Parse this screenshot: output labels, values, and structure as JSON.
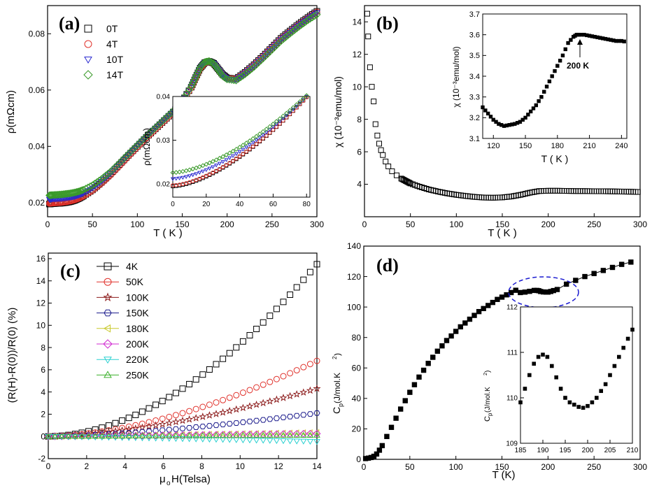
{
  "panels": [
    {
      "id": "a",
      "label": "(a)",
      "chart_data": {
        "type": "scatter",
        "title": "",
        "xlabel": "T ( K )",
        "ylabel": "ρ(mΩcm)",
        "xlim": [
          0,
          300
        ],
        "ylim": [
          0.015,
          0.09
        ],
        "xticks": [
          0,
          50,
          100,
          150,
          200,
          250,
          300
        ],
        "yticks": [
          0.02,
          0.04,
          0.06,
          0.08
        ],
        "legend_position": "top-left",
        "series": [
          {
            "name": "0T",
            "marker": "square",
            "color": "#000000",
            "x": [
              2,
              5,
              10,
              15,
              20,
              25,
              30,
              35,
              40,
              50,
              60,
              70,
              80,
              90,
              100,
              110,
              120,
              130,
              140,
              150,
              160,
              165,
              170,
              175,
              180,
              185,
              190,
              195,
              200,
              210,
              220,
              230,
              240,
              250,
              260,
              270,
              280,
              290,
              300
            ],
            "y": [
              0.0195,
              0.0196,
              0.0197,
              0.0198,
              0.02,
              0.0203,
              0.0208,
              0.0215,
              0.0224,
              0.0245,
              0.0272,
              0.0302,
              0.0335,
              0.0368,
              0.04,
              0.0432,
              0.0462,
              0.0492,
              0.0522,
              0.056,
              0.061,
              0.0645,
              0.0678,
              0.0697,
              0.0702,
              0.0695,
              0.0675,
              0.0655,
              0.0643,
              0.064,
              0.0663,
              0.069,
              0.072,
              0.0752,
              0.0784,
              0.081,
              0.0835,
              0.0858,
              0.088
            ]
          },
          {
            "name": "4T",
            "marker": "circle",
            "color": "#e0302a",
            "x": [
              2,
              5,
              10,
              15,
              20,
              25,
              30,
              35,
              40,
              50,
              60,
              70,
              80,
              90,
              100,
              110,
              120,
              130,
              140,
              150,
              160,
              165,
              170,
              175,
              180,
              185,
              190,
              195,
              200,
              210,
              220,
              230,
              240,
              250,
              260,
              270,
              280,
              290,
              300
            ],
            "y": [
              0.0197,
              0.0198,
              0.0199,
              0.02,
              0.0202,
              0.0205,
              0.0209,
              0.0215,
              0.0223,
              0.0243,
              0.0268,
              0.0297,
              0.033,
              0.0364,
              0.0397,
              0.0429,
              0.046,
              0.049,
              0.052,
              0.0558,
              0.0608,
              0.0642,
              0.0676,
              0.0696,
              0.0701,
              0.0694,
              0.0674,
              0.0654,
              0.0642,
              0.0639,
              0.0662,
              0.0689,
              0.0719,
              0.0751,
              0.0782,
              0.0808,
              0.0833,
              0.0856,
              0.0878
            ]
          },
          {
            "name": "10T",
            "marker": "triangle-down",
            "color": "#2a2ad0",
            "x": [
              2,
              5,
              10,
              15,
              20,
              25,
              30,
              35,
              40,
              50,
              60,
              70,
              80,
              90,
              100,
              110,
              120,
              130,
              140,
              150,
              160,
              165,
              170,
              175,
              180,
              185,
              190,
              195,
              200,
              210,
              220,
              230,
              240,
              250,
              260,
              270,
              280,
              290,
              300
            ],
            "y": [
              0.0212,
              0.0213,
              0.0214,
              0.0215,
              0.0217,
              0.0219,
              0.0222,
              0.0227,
              0.0234,
              0.0252,
              0.0276,
              0.0304,
              0.0336,
              0.0369,
              0.0401,
              0.0433,
              0.0463,
              0.0493,
              0.0523,
              0.056,
              0.0609,
              0.0643,
              0.0677,
              0.0697,
              0.0702,
              0.0694,
              0.0673,
              0.0652,
              0.064,
              0.0637,
              0.066,
              0.0686,
              0.0716,
              0.0748,
              0.0779,
              0.0805,
              0.083,
              0.0853,
              0.0875
            ]
          },
          {
            "name": "14T",
            "marker": "diamond",
            "color": "#3a9a2a",
            "x": [
              2,
              5,
              10,
              15,
              20,
              25,
              30,
              35,
              40,
              50,
              60,
              70,
              80,
              90,
              100,
              110,
              120,
              130,
              140,
              150,
              160,
              165,
              170,
              175,
              180,
              185,
              190,
              195,
              200,
              210,
              220,
              230,
              240,
              250,
              260,
              270,
              280,
              290,
              300
            ],
            "y": [
              0.0226,
              0.0227,
              0.0228,
              0.0229,
              0.0231,
              0.0233,
              0.0236,
              0.024,
              0.0246,
              0.0262,
              0.0284,
              0.031,
              0.0341,
              0.0373,
              0.0405,
              0.0436,
              0.0466,
              0.0496,
              0.0526,
              0.0563,
              0.0612,
              0.0646,
              0.068,
              0.0699,
              0.0703,
              0.0694,
              0.0672,
              0.065,
              0.0638,
              0.0634,
              0.0656,
              0.0682,
              0.0712,
              0.0743,
              0.0774,
              0.08,
              0.0825,
              0.0848,
              0.0868
            ]
          }
        ],
        "inset": {
          "xlabel": "",
          "ylabel": "ρ(mΩcm)",
          "xlim": [
            0,
            82
          ],
          "ylim": [
            0.017,
            0.04
          ],
          "xticks": [
            0,
            20,
            40,
            60,
            80
          ],
          "yticks": [
            0.02,
            0.03,
            0.04
          ],
          "series_y_at_0": [
            0.0195,
            0.0197,
            0.0212,
            0.0226
          ],
          "series_y_at_80": [
            0.0399,
            0.0398,
            0.04,
            0.0402
          ]
        }
      }
    },
    {
      "id": "b",
      "label": "(b)",
      "chart_data": {
        "type": "scatter",
        "xlabel": "T ( K )",
        "ylabel": "χ (10⁻³emu/mol)",
        "xlim": [
          0,
          300
        ],
        "ylim": [
          2,
          15
        ],
        "xticks": [
          0,
          50,
          100,
          150,
          200,
          250,
          300
        ],
        "yticks": [
          4,
          6,
          8,
          10,
          12,
          14
        ],
        "series": [
          {
            "name": "χ",
            "marker": "square-open",
            "color": "#000000",
            "x": [
              3,
              4,
              6,
              8,
              10,
              12,
              14,
              16,
              18,
              20,
              23,
              26,
              30,
              35,
              40,
              45,
              50,
              60,
              70,
              80,
              90,
              100,
              110,
              120,
              130,
              140,
              150,
              160,
              170,
              180,
              190,
              200,
              210,
              220,
              230,
              240,
              250,
              260,
              270,
              280,
              290,
              300
            ],
            "y": [
              14.5,
              13.1,
              11.2,
              10.0,
              9.1,
              7.7,
              7.0,
              6.5,
              6.1,
              5.8,
              5.4,
              5.1,
              4.8,
              4.55,
              4.35,
              4.2,
              4.05,
              3.85,
              3.68,
              3.55,
              3.44,
              3.35,
              3.28,
              3.22,
              3.18,
              3.17,
              3.19,
              3.25,
              3.35,
              3.48,
              3.58,
              3.6,
              3.6,
              3.59,
              3.58,
              3.58,
              3.57,
              3.57,
              3.56,
              3.55,
              3.54,
              3.52
            ]
          }
        ],
        "inset": {
          "xlabel": "T ( K )",
          "ylabel": "χ (10⁻³emu/mol)",
          "xlim": [
            110,
            245
          ],
          "ylim": [
            3.1,
            3.7
          ],
          "xticks": [
            120,
            150,
            180,
            210,
            240
          ],
          "yticks": [
            3.1,
            3.2,
            3.3,
            3.4,
            3.5,
            3.6,
            3.7
          ],
          "annotation": "200 K",
          "annotation_x": 200,
          "x": [
            110,
            115,
            120,
            125,
            130,
            135,
            140,
            145,
            150,
            155,
            160,
            165,
            170,
            175,
            180,
            185,
            190,
            195,
            198,
            200,
            205,
            210,
            215,
            220,
            225,
            230,
            235,
            240,
            245
          ],
          "y": [
            3.25,
            3.22,
            3.19,
            3.17,
            3.16,
            3.165,
            3.17,
            3.18,
            3.2,
            3.23,
            3.26,
            3.3,
            3.35,
            3.4,
            3.45,
            3.5,
            3.56,
            3.59,
            3.6,
            3.6,
            3.6,
            3.595,
            3.59,
            3.585,
            3.58,
            3.575,
            3.57,
            3.57,
            3.565
          ]
        }
      }
    },
    {
      "id": "c",
      "label": "(c)",
      "chart_data": {
        "type": "scatter",
        "xlabel": "μ",
        "xlabel_sub": "o",
        "xlabel_rest": "H(Telsa)",
        "ylabel": "(R(H)-R(0))/R(0)  (%)",
        "xlim": [
          0,
          14
        ],
        "ylim": [
          -2,
          16.5
        ],
        "xticks": [
          0,
          2,
          4,
          6,
          8,
          10,
          12,
          14
        ],
        "yticks": [
          -2,
          0,
          2,
          4,
          6,
          8,
          10,
          12,
          14,
          16
        ],
        "legend_position": "top-left",
        "series": [
          {
            "name": "4K",
            "marker": "square",
            "color": "#000000",
            "end_value": 15.5,
            "power": 1.85
          },
          {
            "name": "50K",
            "marker": "circle",
            "color": "#e0302a",
            "end_value": 6.8,
            "power": 1.7
          },
          {
            "name": "100K",
            "marker": "star",
            "color": "#8b1a1a",
            "end_value": 4.3,
            "power": 1.6
          },
          {
            "name": "150K",
            "marker": "hexagon",
            "color": "#1a1a8b",
            "end_value": 2.1,
            "power": 1.55
          },
          {
            "name": "180K",
            "marker": "triangle-left",
            "color": "#c8c82a",
            "end_value": 0.35,
            "power": 1.2
          },
          {
            "name": "200K",
            "marker": "diamond",
            "color": "#d02ad0",
            "end_value": 0.25,
            "power": 1.2
          },
          {
            "name": "220K",
            "marker": "triangle-down",
            "color": "#2ad0d0",
            "end_value": -0.45,
            "power": 1.2
          },
          {
            "name": "250K",
            "marker": "triangle-up",
            "color": "#3ab02a",
            "end_value": 0.1,
            "power": 1.0
          }
        ]
      }
    },
    {
      "id": "d",
      "label": "(d)",
      "chart_data": {
        "type": "scatter",
        "xlabel": "T (K)",
        "ylabel": "C",
        "ylabel_sub": "p",
        "ylabel_rest": " (J/mol.K",
        "ylabel_sup": "2",
        "ylabel_end": ")",
        "xlim": [
          0,
          300
        ],
        "ylim": [
          0,
          140
        ],
        "xticks": [
          0,
          50,
          100,
          150,
          200,
          250,
          300
        ],
        "yticks": [
          0,
          20,
          40,
          60,
          80,
          100,
          120,
          140
        ],
        "series": [
          {
            "name": "Cp",
            "marker": "square-filled",
            "color": "#000000",
            "x": [
              2,
              5,
              8,
              11,
              14,
              17,
              20,
              25,
              30,
              35,
              40,
              45,
              50,
              55,
              60,
              65,
              70,
              75,
              80,
              85,
              90,
              95,
              100,
              105,
              110,
              115,
              120,
              125,
              130,
              135,
              140,
              145,
              150,
              155,
              160,
              165,
              170,
              175,
              180,
              185,
              188,
              190,
              192,
              195,
              198,
              200,
              203,
              206,
              210,
              220,
              230,
              240,
              250,
              260,
              270,
              280,
              290
            ],
            "y": [
              0.5,
              0.8,
              1.2,
              2,
              3.5,
              6,
              9,
              15,
              21,
              27,
              33,
              38.5,
              44,
              49,
              54,
              58.5,
              63,
              67,
              71,
              74.5,
              78,
              81,
              84,
              87,
              89.5,
              92,
              94.5,
              97,
              99,
              101,
              103,
              105,
              106.5,
              108,
              109.5,
              111,
              109.5,
              109.8,
              110.3,
              110.9,
              110.9,
              110.7,
              110.2,
              109.9,
              109.8,
              109.8,
              110.2,
              110.8,
              111.5,
              115,
              117.5,
              120,
              122,
              124,
              126,
              128,
              129.5
            ]
          }
        ],
        "annotation_ellipse_center": [
          190,
          111
        ],
        "inset": {
          "xlabel": "",
          "ylabel": "C",
          "ylabel_sub": "p",
          "ylabel_rest": " (J/mol.K",
          "ylabel_sup": "2",
          "ylabel_end": ")",
          "xlim": [
            185,
            210
          ],
          "ylim": [
            109,
            112
          ],
          "xticks": [
            185,
            190,
            195,
            200,
            205,
            210
          ],
          "yticks": [
            109,
            110,
            111,
            112
          ],
          "x": [
            185,
            186,
            187,
            188,
            189,
            190,
            191,
            192,
            193,
            194,
            195,
            196,
            197,
            198,
            199,
            200,
            201,
            202,
            203,
            204,
            205,
            206,
            207,
            208,
            209,
            210
          ],
          "y": [
            109.9,
            110.2,
            110.5,
            110.75,
            110.9,
            110.95,
            110.9,
            110.7,
            110.45,
            110.2,
            110.0,
            109.9,
            109.85,
            109.8,
            109.78,
            109.82,
            109.9,
            110.0,
            110.15,
            110.3,
            110.5,
            110.7,
            110.9,
            111.1,
            111.3,
            111.5
          ]
        }
      }
    }
  ]
}
